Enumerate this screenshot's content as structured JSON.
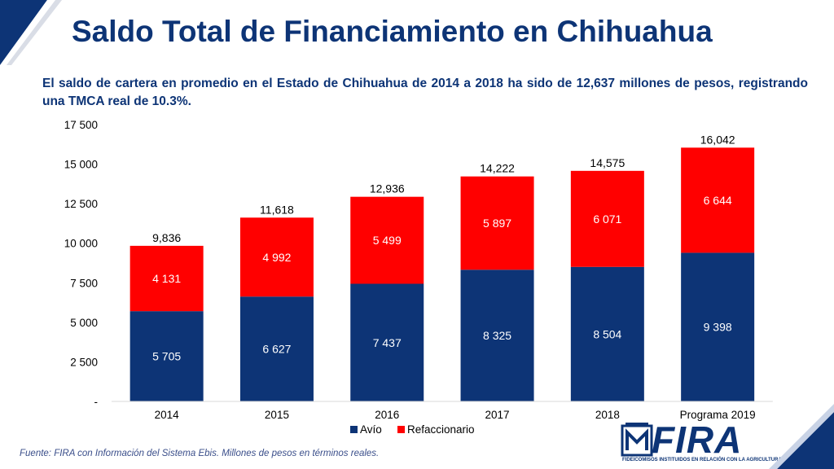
{
  "header": {
    "title": "Saldo Total de Financiamiento en Chihuahua",
    "subtitle_part1": "El saldo de cartera en promedio en el Estado de Chihuahua de 2014 a 2018  ha sido de 12,637 millones de pesos, registrando una TMCA real de ",
    "subtitle_highlight": "10.3%."
  },
  "footer": {
    "source": "Fuente: FIRA con Información del Sistema Ebis. Millones de pesos en términos reales."
  },
  "logo": {
    "text": "FIRA",
    "tagline": "FIDEICOMISOS INSTITUIDOS EN RELACIÓN CON LA AGRICULTURA"
  },
  "colors": {
    "accent_navy": "#0d3476",
    "bar_red": "#ff0000",
    "corner_navy": "#0d3476"
  },
  "chart_data": {
    "type": "bar",
    "stacked": true,
    "categories": [
      "2014",
      "2015",
      "2016",
      "2017",
      "2018",
      "Programa 2019"
    ],
    "series": [
      {
        "name": "Avío",
        "color": "#0d3476",
        "values": [
          5705,
          6627,
          7437,
          8325,
          8504,
          9398
        ],
        "labels": [
          "5 705",
          "6 627",
          "7 437",
          "8 325",
          "8 504",
          "9 398"
        ]
      },
      {
        "name": "Refaccionario",
        "color": "#ff0000",
        "values": [
          4131,
          4992,
          5499,
          5897,
          6071,
          6644
        ],
        "labels": [
          "4 131",
          "4 992",
          "5 499",
          "5 897",
          "6 071",
          "6 644"
        ]
      }
    ],
    "totals": [
      "9,836",
      "11,618",
      "12,936",
      "14,222",
      "14,575",
      "16,042"
    ],
    "ylim": [
      0,
      17500
    ],
    "yticks": [
      0,
      2500,
      5000,
      7500,
      10000,
      12500,
      15000,
      17500
    ],
    "ytick_labels": [
      "-",
      "2 500",
      "5 000",
      "7 500",
      "10 000",
      "12 500",
      "15 000",
      "17 500"
    ],
    "grid": false,
    "legend_position": "bottom"
  }
}
